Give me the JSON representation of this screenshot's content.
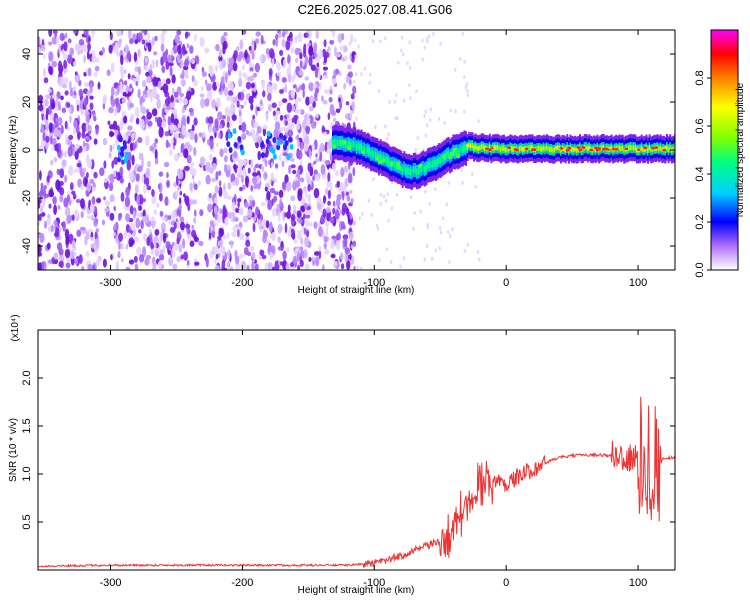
{
  "title": "C2E6.2025.027.08.41.G06",
  "chart_data": [
    {
      "type": "heatmap",
      "xlabel": "Height of straight line (km)",
      "ylabel": "Frequency (Hz)",
      "xlim": [
        -355,
        128
      ],
      "ylim": [
        -50,
        50
      ],
      "xticks": [
        "-300",
        "-200",
        "-100",
        "0",
        "100"
      ],
      "yticks": [
        "-40",
        "-20",
        "0",
        "20",
        "40"
      ],
      "colorbar": {
        "label": "Normalized spectral amplitude",
        "range": [
          0,
          1
        ],
        "ticks": [
          "0.0",
          "0.2",
          "0.4",
          "0.6",
          "0.8"
        ]
      },
      "ridge": {
        "x": [
          -130,
          -120,
          -110,
          -100,
          -90,
          -80,
          -70,
          -60,
          -50,
          -40,
          -30,
          -20,
          -10,
          0,
          20,
          40,
          60,
          80,
          100,
          120
        ],
        "y": [
          3,
          2.5,
          1,
          -2,
          -5,
          -8,
          -9,
          -7,
          -4,
          -1,
          1.5,
          1,
          0.5,
          0.5,
          0.5,
          0.5,
          0.5,
          0.5,
          0.5,
          0.5
        ]
      },
      "colors": [
        "#ffffff",
        "#8a2be2",
        "#0000ff",
        "#00ffff",
        "#00ff00",
        "#ffff00",
        "#ff0000",
        "#ff00ff"
      ]
    },
    {
      "type": "line",
      "xlabel": "Height of straight line (km)",
      "ylabel": "SNR (10 * v/v)",
      "scale_label": "(x10⁴)",
      "xlim": [
        -355,
        128
      ],
      "ylim": [
        0,
        2.5
      ],
      "xticks": [
        "-300",
        "-200",
        "-100",
        "0",
        "100"
      ],
      "yticks": [
        "0.5",
        "1.0",
        "1.5",
        "2.0"
      ],
      "color": "#ee3333",
      "series": [
        {
          "x": [
            -355,
            -300,
            -250,
            -200,
            -150,
            -120,
            -100,
            -90,
            -80,
            -70,
            -60,
            -50,
            -45,
            -40,
            -35,
            -30,
            -25,
            -20,
            -15,
            -10,
            -5,
            0,
            10,
            20,
            30,
            40,
            50,
            60,
            70,
            80,
            90,
            95,
            100,
            105,
            110,
            115,
            120,
            128
          ],
          "y": [
            0.04,
            0.05,
            0.05,
            0.05,
            0.05,
            0.05,
            0.07,
            0.1,
            0.15,
            0.2,
            0.25,
            0.3,
            0.35,
            0.4,
            0.55,
            0.7,
            0.82,
            0.9,
            0.95,
            0.93,
            0.92,
            0.9,
            0.98,
            1.05,
            1.12,
            1.17,
            1.19,
            1.2,
            1.2,
            1.19,
            1.18,
            1.15,
            1.15,
            1.2,
            1.15,
            1.1,
            1.17,
            1.17
          ]
        }
      ]
    }
  ]
}
